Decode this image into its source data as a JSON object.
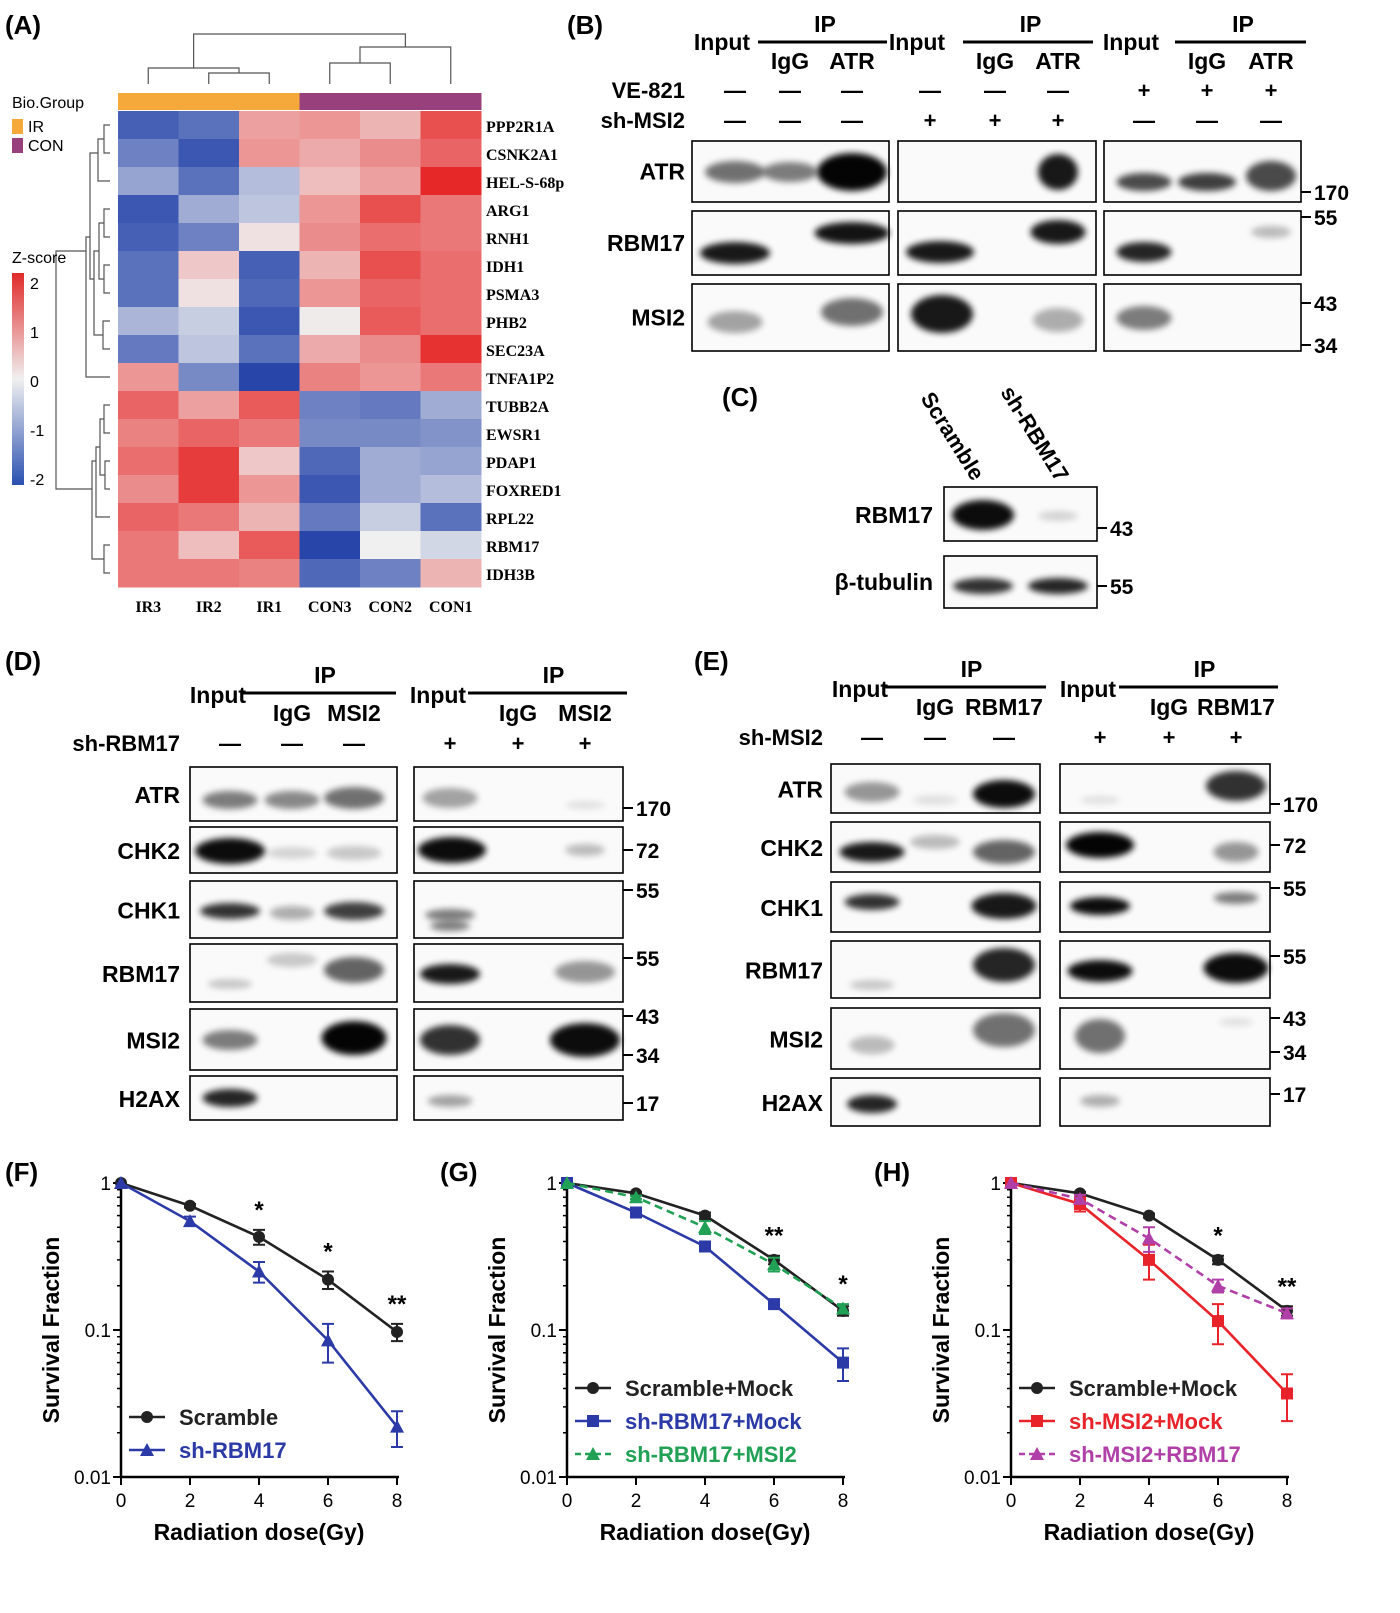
{
  "panels": {
    "A": {
      "label": "(A)",
      "legend_group_title": "Bio.Group",
      "legend_groups": [
        {
          "name": "IR",
          "color": "#f5a93b"
        },
        {
          "name": "CON",
          "color": "#98407c"
        }
      ],
      "legend_zscore_title": "Z-score",
      "zscore_ticks": [
        "2",
        "1",
        "0",
        "-1",
        "-2"
      ],
      "columns": [
        "IR3",
        "IR2",
        "IR1",
        "CON3",
        "CON2",
        "CON1"
      ],
      "column_groups": [
        "IR",
        "IR",
        "IR",
        "CON",
        "CON",
        "CON"
      ],
      "genes": [
        "PPP2R1A",
        "CSNK2A1",
        "HEL-S-68p",
        "ARG1",
        "RNH1",
        "IDH1",
        "PSMA3",
        "PHB2",
        "SEC23A",
        "TNFA1P2",
        "TUBB2A",
        "EWSR1",
        "PDAP1",
        "FOXRED1",
        "RPL22",
        "RBM17",
        "IDH3B"
      ],
      "zscores": [
        [
          -1.7,
          -1.5,
          0.8,
          0.9,
          0.6,
          1.6
        ],
        [
          -1.3,
          -1.8,
          0.9,
          0.7,
          1.0,
          1.4
        ],
        [
          -0.9,
          -1.5,
          -0.6,
          0.5,
          0.8,
          2.0
        ],
        [
          -1.8,
          -0.8,
          -0.5,
          0.9,
          1.6,
          1.2
        ],
        [
          -1.7,
          -1.3,
          0.15,
          1.0,
          1.3,
          1.2
        ],
        [
          -1.5,
          0.4,
          -1.7,
          0.6,
          1.6,
          1.3
        ],
        [
          -1.5,
          0.15,
          -1.6,
          0.9,
          1.4,
          1.3
        ],
        [
          -0.7,
          -0.4,
          -1.8,
          0.05,
          1.5,
          1.3
        ],
        [
          -1.4,
          -0.5,
          -1.5,
          0.7,
          1.0,
          1.9
        ],
        [
          0.9,
          -1.2,
          -2.0,
          1.1,
          0.9,
          1.2
        ],
        [
          1.4,
          0.8,
          1.5,
          -1.3,
          -1.4,
          -0.8
        ],
        [
          1.1,
          1.4,
          1.2,
          -1.2,
          -1.2,
          -1.1
        ],
        [
          1.3,
          1.8,
          0.4,
          -1.6,
          -0.8,
          -0.9
        ],
        [
          1.0,
          1.8,
          0.9,
          -1.8,
          -0.8,
          -0.6
        ],
        [
          1.4,
          1.2,
          0.6,
          -1.4,
          -0.4,
          -1.5
        ],
        [
          1.2,
          0.5,
          1.5,
          -2.0,
          0.0,
          -0.3
        ],
        [
          1.2,
          1.2,
          1.1,
          -1.6,
          -1.3,
          0.6
        ]
      ]
    },
    "B": {
      "label": "(B)",
      "header_input": "Input",
      "header_ip": "IP",
      "ip_lanes": [
        "IgG",
        "ATR"
      ],
      "row_labels": [
        "VE-821",
        "sh-MSI2"
      ],
      "treatments": [
        [
          "—",
          "—",
          "—",
          "—",
          "—",
          "—",
          "+",
          "+",
          "+"
        ],
        [
          "—",
          "—",
          "—",
          "+",
          "+",
          "+",
          "—",
          "—",
          "—"
        ]
      ],
      "blots": [
        "ATR",
        "RBM17",
        "MSI2"
      ],
      "markers": [
        "170",
        "55",
        "43",
        "34"
      ]
    },
    "C": {
      "label": "(C)",
      "lanes": [
        "Scramble",
        "sh-RBM17"
      ],
      "blots": [
        "RBM17",
        "β-tubulin"
      ],
      "markers": [
        "43",
        "55"
      ]
    },
    "D": {
      "label": "(D)",
      "header_input": "Input",
      "header_ip": "IP",
      "ip_lanes": [
        "IgG",
        "MSI2"
      ],
      "row_label": "sh-RBM17",
      "treatments": [
        "—",
        "—",
        "—",
        "+",
        "+",
        "+"
      ],
      "blots": [
        "ATR",
        "CHK2",
        "CHK1",
        "RBM17",
        "MSI2",
        "H2AX"
      ],
      "markers": [
        "170",
        "72",
        "55",
        "55",
        "43",
        "34",
        "17"
      ]
    },
    "E": {
      "label": "(E)",
      "header_input": "Input",
      "header_ip": "IP",
      "ip_lanes": [
        "IgG",
        "RBM17"
      ],
      "row_label": "sh-MSI2",
      "treatments": [
        "—",
        "—",
        "—",
        "+",
        "+",
        "+"
      ],
      "blots": [
        "ATR",
        "CHK2",
        "CHK1",
        "RBM17",
        "MSI2",
        "H2AX"
      ],
      "markers": [
        "170",
        "72",
        "55",
        "55",
        "43",
        "34",
        "17"
      ]
    }
  },
  "chart_data": [
    {
      "panel": "(F)",
      "type": "line",
      "xlabel": "Radiation dose(Gy)",
      "ylabel": "Survival Fraction",
      "x": [
        0,
        2,
        4,
        6,
        8
      ],
      "yscale": "log",
      "ylim": [
        0.01,
        1
      ],
      "yticks": [
        "0.01",
        "0.1",
        "1"
      ],
      "xticks": [
        "0",
        "2",
        "4",
        "6",
        "8"
      ],
      "legend_position": "bottom-left",
      "series": [
        {
          "name": "Scramble",
          "values": [
            1.0,
            0.7,
            0.43,
            0.22,
            0.097
          ],
          "errors": [
            0,
            0.02,
            0.05,
            0.03,
            0.013
          ],
          "color": "#222222",
          "marker": "circle",
          "dash": false
        },
        {
          "name": "sh-RBM17",
          "values": [
            1.0,
            0.55,
            0.25,
            0.085,
            0.022
          ],
          "errors": [
            0,
            0.04,
            0.04,
            0.025,
            0.006
          ],
          "color": "#2b3aa6",
          "marker": "triangle",
          "dash": false
        }
      ],
      "annotations": [
        {
          "x": 4,
          "text": "*"
        },
        {
          "x": 6,
          "text": "*"
        },
        {
          "x": 8,
          "text": "**"
        }
      ]
    },
    {
      "panel": "(G)",
      "type": "line",
      "xlabel": "Radiation dose(Gy)",
      "ylabel": "Survival Fraction",
      "x": [
        0,
        2,
        4,
        6,
        8
      ],
      "yscale": "log",
      "ylim": [
        0.01,
        1
      ],
      "yticks": [
        "0.01",
        "0.1",
        "1"
      ],
      "xticks": [
        "0",
        "2",
        "4",
        "6",
        "8"
      ],
      "legend_position": "bottom-left",
      "series": [
        {
          "name": "Scramble+Mock",
          "values": [
            1.0,
            0.85,
            0.6,
            0.3,
            0.135
          ],
          "errors": [
            0,
            0.02,
            0.03,
            0.02,
            0.01
          ],
          "color": "#222222",
          "marker": "circle",
          "dash": false
        },
        {
          "name": "sh-RBM17+Mock",
          "values": [
            1.0,
            0.63,
            0.37,
            0.15,
            0.06
          ],
          "errors": [
            0,
            0.02,
            0.02,
            0.01,
            0.015
          ],
          "color": "#2b3aa6",
          "marker": "square",
          "dash": false
        },
        {
          "name": "sh-RBM17+MSI2",
          "values": [
            1.0,
            0.8,
            0.5,
            0.28,
            0.14
          ],
          "errors": [
            0,
            0.02,
            0.05,
            0.03,
            0.01
          ],
          "color": "#21a155",
          "marker": "triangle",
          "dash": true
        }
      ],
      "annotations": [
        {
          "x": 6,
          "text": "**"
        },
        {
          "x": 8,
          "text": "*"
        }
      ]
    },
    {
      "panel": "(H)",
      "type": "line",
      "xlabel": "Radiation dose(Gy)",
      "ylabel": "Survival Fraction",
      "x": [
        0,
        2,
        4,
        6,
        8
      ],
      "yscale": "log",
      "ylim": [
        0.01,
        1
      ],
      "yticks": [
        "0.01",
        "0.1",
        "1"
      ],
      "xticks": [
        "0",
        "2",
        "4",
        "6",
        "8"
      ],
      "legend_position": "bottom-left",
      "series": [
        {
          "name": "Scramble+Mock",
          "values": [
            1.0,
            0.85,
            0.6,
            0.3,
            0.135
          ],
          "errors": [
            0,
            0.02,
            0.02,
            0.02,
            0.01
          ],
          "color": "#222222",
          "marker": "circle",
          "dash": false
        },
        {
          "name": "sh-MSI2+Mock",
          "values": [
            1.0,
            0.72,
            0.3,
            0.115,
            0.037
          ],
          "errors": [
            0,
            0.08,
            0.08,
            0.035,
            0.013
          ],
          "color": "#e8232a",
          "marker": "square",
          "dash": false
        },
        {
          "name": "sh-MSI2+RBM17",
          "values": [
            1.0,
            0.78,
            0.42,
            0.2,
            0.13
          ],
          "errors": [
            0,
            0.05,
            0.08,
            0.02,
            0.01
          ],
          "color": "#b040a8",
          "marker": "triangle",
          "dash": true
        }
      ],
      "annotations": [
        {
          "x": 6,
          "text": "*"
        },
        {
          "x": 8,
          "text": "**"
        }
      ]
    }
  ]
}
